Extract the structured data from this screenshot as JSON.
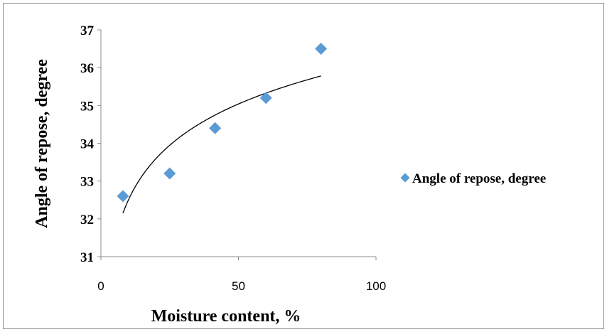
{
  "chart_data": {
    "type": "scatter",
    "title": "",
    "xlabel": "Moisture content, %",
    "ylabel": "Angle of repose, degree",
    "xlim": [
      0,
      100
    ],
    "ylim": [
      31,
      37
    ],
    "xticks": [
      "0",
      "50",
      "100"
    ],
    "yticks": [
      "31",
      "32",
      "33",
      "34",
      "35",
      "36",
      "37"
    ],
    "grid": false,
    "legend_position": "right",
    "series": [
      {
        "name": "Angle of repose, degree",
        "marker": "diamond",
        "color": "#5b9bd5",
        "x": [
          8,
          25,
          41.5,
          60,
          80
        ],
        "y": [
          32.6,
          33.2,
          34.4,
          35.2,
          36.5
        ]
      }
    ],
    "trendline": {
      "type": "logarithmic",
      "color": "#000000",
      "x_range": [
        8,
        80
      ],
      "y_start": 32.15,
      "y_end": 35.78
    }
  }
}
